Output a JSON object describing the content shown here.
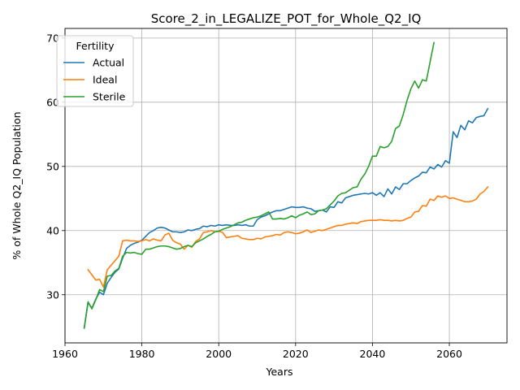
{
  "chart_data": {
    "type": "line",
    "title": "Score_2_in_LEGALIZE_POT_for_Whole_Q2_IQ",
    "xlabel": "Years",
    "ylabel": "% of Whole Q2_IQ Population",
    "xlim": [
      1960,
      2075
    ],
    "ylim": [
      22.5,
      71.5
    ],
    "xticks": [
      1960,
      1980,
      2000,
      2020,
      2040,
      2060
    ],
    "yticks": [
      30,
      40,
      50,
      60,
      70
    ],
    "grid": true,
    "legend": {
      "title": "Fertility",
      "placement": "top-left"
    },
    "series": [
      {
        "name": "Actual",
        "color": "#1f77b4",
        "x": [
          1965,
          1966,
          1967,
          1968,
          1969,
          1970,
          1971,
          1972,
          1973,
          1974,
          1975,
          1976,
          1977,
          1978,
          1979,
          1980,
          1981,
          1982,
          1983,
          1984,
          1985,
          1986,
          1987,
          1988,
          1989,
          1990,
          1991,
          1992,
          1993,
          1994,
          1995,
          1996,
          1997,
          1998,
          1999,
          2000,
          2001,
          2002,
          2003,
          2004,
          2005,
          2006,
          2007,
          2008,
          2009,
          2010,
          2011,
          2012,
          2013,
          2014,
          2015,
          2016,
          2017,
          2018,
          2019,
          2020,
          2021,
          2022,
          2023,
          2024,
          2025,
          2026,
          2027,
          2028,
          2029,
          2030,
          2031,
          2032,
          2033,
          2034,
          2035,
          2036,
          2037,
          2038,
          2039,
          2040,
          2041,
          2042,
          2043,
          2044,
          2045,
          2046,
          2047,
          2048,
          2049,
          2050,
          2051,
          2052,
          2053,
          2054,
          2055,
          2056,
          2057,
          2058,
          2059,
          2060,
          2061,
          2062,
          2063,
          2064,
          2065,
          2066,
          2067,
          2068,
          2069,
          2070
        ],
        "values": [
          24.8,
          28.8,
          27.9,
          29.3,
          30.4,
          30.0,
          31.8,
          32.7,
          33.5,
          34.0,
          35.7,
          37.2,
          37.7,
          38.0,
          38.2,
          38.5,
          39.1,
          39.7,
          40.0,
          40.4,
          40.5,
          40.4,
          40.1,
          39.8,
          39.8,
          39.7,
          39.8,
          40.1,
          40.0,
          40.2,
          40.3,
          40.7,
          40.6,
          40.8,
          40.7,
          40.9,
          40.8,
          40.9,
          40.8,
          40.8,
          40.9,
          40.8,
          40.9,
          40.7,
          40.7,
          41.7,
          42.1,
          42.3,
          42.6,
          42.9,
          43.1,
          43.1,
          43.3,
          43.5,
          43.7,
          43.6,
          43.6,
          43.7,
          43.5,
          43.4,
          43.0,
          43.1,
          43.2,
          42.9,
          43.7,
          43.6,
          44.5,
          44.3,
          45.1,
          45.3,
          45.5,
          45.6,
          45.7,
          45.8,
          45.7,
          45.9,
          45.5,
          45.9,
          45.3,
          46.5,
          45.7,
          46.8,
          46.4,
          47.3,
          47.3,
          47.8,
          48.2,
          48.5,
          49.1,
          49.0,
          49.9,
          49.6,
          50.3,
          49.9,
          50.9,
          50.5,
          55.4,
          54.5,
          56.4,
          55.7,
          57.1,
          56.8,
          57.6,
          57.8,
          57.9,
          59.0
        ]
      },
      {
        "name": "Ideal",
        "color": "#ff7f0e",
        "x": [
          1966,
          1967,
          1968,
          1969,
          1970,
          1971,
          1972,
          1973,
          1974,
          1975,
          1976,
          1977,
          1978,
          1979,
          1980,
          1981,
          1982,
          1983,
          1984,
          1985,
          1986,
          1987,
          1988,
          1989,
          1990,
          1991,
          1992,
          1993,
          1994,
          1995,
          1996,
          1997,
          1998,
          1999,
          2000,
          2001,
          2002,
          2003,
          2004,
          2005,
          2006,
          2007,
          2008,
          2009,
          2010,
          2011,
          2012,
          2013,
          2014,
          2015,
          2016,
          2017,
          2018,
          2019,
          2020,
          2021,
          2022,
          2023,
          2024,
          2025,
          2026,
          2027,
          2028,
          2029,
          2030,
          2031,
          2032,
          2033,
          2034,
          2035,
          2036,
          2037,
          2038,
          2039,
          2040,
          2041,
          2042,
          2043,
          2044,
          2045,
          2046,
          2047,
          2048,
          2049,
          2050,
          2051,
          2052,
          2053,
          2054,
          2055,
          2056,
          2057,
          2058,
          2059,
          2060,
          2061,
          2062,
          2063,
          2064,
          2065,
          2066,
          2067,
          2068,
          2069,
          2070
        ],
        "values": [
          33.9,
          33.1,
          32.3,
          32.4,
          31.2,
          33.9,
          34.6,
          35.3,
          36.0,
          38.4,
          38.5,
          38.4,
          38.4,
          38.3,
          38.4,
          38.6,
          38.4,
          38.7,
          38.5,
          38.4,
          39.3,
          39.6,
          38.5,
          38.1,
          37.9,
          37.1,
          37.7,
          37.4,
          38.3,
          38.7,
          39.7,
          39.8,
          40.0,
          39.8,
          39.9,
          39.7,
          38.9,
          39.0,
          39.1,
          39.2,
          38.8,
          38.7,
          38.6,
          38.6,
          38.8,
          38.7,
          39.0,
          39.1,
          39.2,
          39.4,
          39.3,
          39.7,
          39.8,
          39.7,
          39.5,
          39.6,
          39.8,
          40.1,
          39.7,
          39.9,
          40.1,
          40.0,
          40.2,
          40.4,
          40.6,
          40.8,
          40.8,
          41.0,
          41.1,
          41.2,
          41.1,
          41.4,
          41.5,
          41.6,
          41.6,
          41.6,
          41.7,
          41.6,
          41.6,
          41.5,
          41.6,
          41.5,
          41.6,
          41.9,
          42.1,
          42.9,
          43.0,
          43.9,
          43.8,
          44.9,
          44.7,
          45.4,
          45.2,
          45.4,
          45.0,
          45.1,
          44.9,
          44.7,
          44.5,
          44.5,
          44.6,
          44.9,
          45.7,
          46.1,
          46.8
        ]
      },
      {
        "name": "Sterile",
        "color": "#2ca02c",
        "x": [
          1965,
          1966,
          1967,
          1968,
          1969,
          1970,
          1971,
          1972,
          1973,
          1974,
          1975,
          1976,
          1977,
          1978,
          1979,
          1980,
          1981,
          1982,
          1983,
          1984,
          1985,
          1986,
          1987,
          1988,
          1989,
          1990,
          1991,
          1992,
          1993,
          1994,
          1995,
          1996,
          1997,
          1998,
          1999,
          2000,
          2001,
          2002,
          2003,
          2004,
          2005,
          2006,
          2007,
          2008,
          2009,
          2010,
          2011,
          2012,
          2013,
          2014,
          2015,
          2016,
          2017,
          2018,
          2019,
          2020,
          2021,
          2022,
          2023,
          2024,
          2025,
          2026,
          2027,
          2028,
          2029,
          2030,
          2031,
          2032,
          2033,
          2034,
          2035,
          2036,
          2037,
          2038,
          2039,
          2040,
          2041,
          2042,
          2043,
          2044,
          2045,
          2046,
          2047,
          2048,
          2049,
          2050,
          2051,
          2052,
          2053,
          2054,
          2055,
          2056
        ],
        "values": [
          24.8,
          28.9,
          27.8,
          29.2,
          30.8,
          30.5,
          32.9,
          33.0,
          33.7,
          34.1,
          36.0,
          36.6,
          36.5,
          36.6,
          36.4,
          36.3,
          37.1,
          37.1,
          37.3,
          37.5,
          37.6,
          37.6,
          37.5,
          37.3,
          37.1,
          37.2,
          37.5,
          37.7,
          37.5,
          38.1,
          38.4,
          38.7,
          39.1,
          39.4,
          39.8,
          39.9,
          40.2,
          40.4,
          40.6,
          40.9,
          41.2,
          41.3,
          41.6,
          41.8,
          42.0,
          42.1,
          42.3,
          42.6,
          42.9,
          41.8,
          41.8,
          41.9,
          41.8,
          42.0,
          42.3,
          42.0,
          42.4,
          42.6,
          42.9,
          42.5,
          42.6,
          43.1,
          43.2,
          43.4,
          44.0,
          44.6,
          45.4,
          45.8,
          45.9,
          46.3,
          46.7,
          46.8,
          48.0,
          48.8,
          50.0,
          51.6,
          51.6,
          53.1,
          52.9,
          53.1,
          53.9,
          55.9,
          56.3,
          58.1,
          60.3,
          62.1,
          63.3,
          62.2,
          63.5,
          63.3,
          66.3,
          69.3
        ]
      }
    ]
  }
}
